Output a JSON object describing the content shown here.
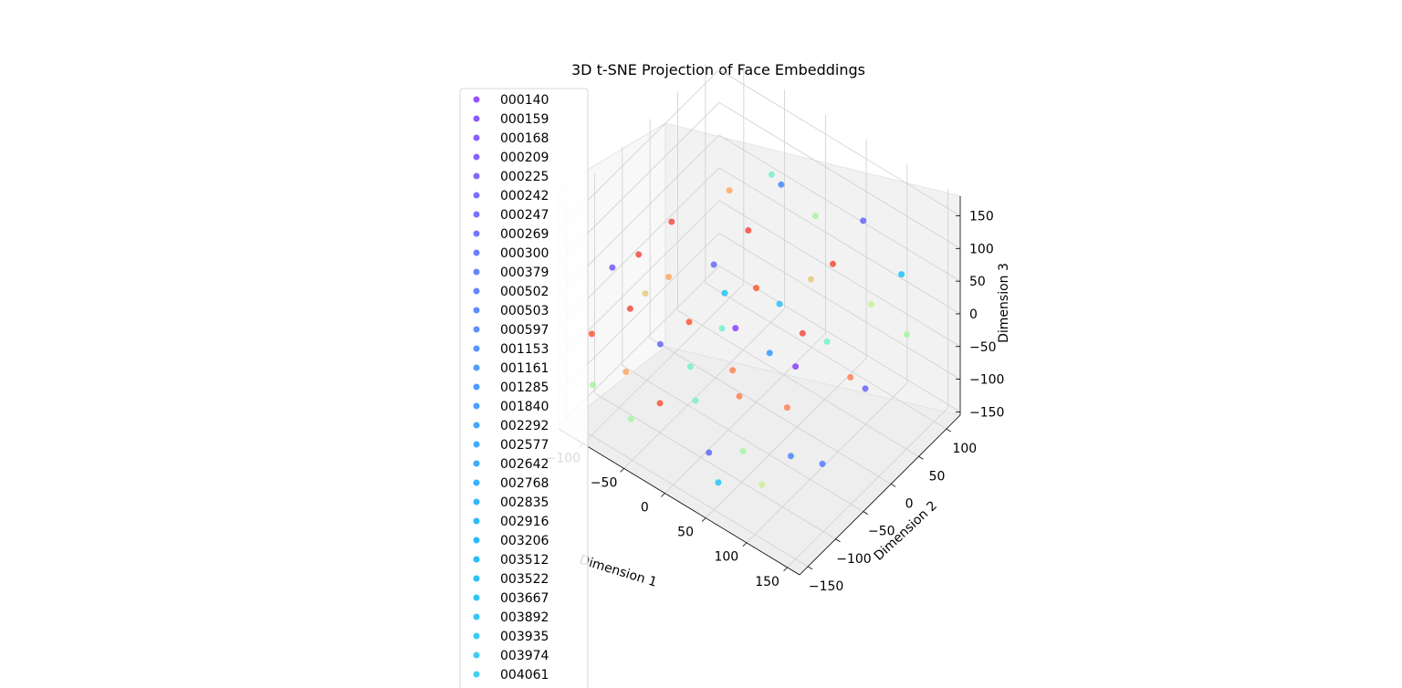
{
  "chart_data": {
    "type": "scatter",
    "projection": "3d",
    "title": "3D t-SNE Projection of Face Embeddings",
    "xlabel": "Dimension 1",
    "ylabel": "Dimension 2",
    "zlabel": "Dimension 3",
    "x_ticks": [
      "−100",
      "−50",
      "0",
      "50",
      "100",
      "150"
    ],
    "y_ticks": [
      "−150",
      "−100",
      "−50",
      "0",
      "50",
      "100"
    ],
    "z_ticks": [
      "−150",
      "−100",
      "−50",
      "0",
      "50",
      "100",
      "150"
    ],
    "xlim": [
      -130,
      165
    ],
    "ylim": [
      -165,
      125
    ],
    "zlim": [
      -155,
      180
    ],
    "grid": true,
    "legend_placement": "upper-left",
    "colormap": "rainbow",
    "legend": [
      {
        "label": "000140",
        "color": "#8036fb"
      },
      {
        "label": "000159",
        "color": "#7a3dfb"
      },
      {
        "label": "000168",
        "color": "#7543fc"
      },
      {
        "label": "000209",
        "color": "#704afc"
      },
      {
        "label": "000225",
        "color": "#6a50fc"
      },
      {
        "label": "000242",
        "color": "#6556fd"
      },
      {
        "label": "000247",
        "color": "#5f5cfd"
      },
      {
        "label": "000269",
        "color": "#5a62fd"
      },
      {
        "label": "000300",
        "color": "#5568fd"
      },
      {
        "label": "000379",
        "color": "#4f6dfe"
      },
      {
        "label": "000502",
        "color": "#4a73fe"
      },
      {
        "label": "000503",
        "color": "#4478fe"
      },
      {
        "label": "000597",
        "color": "#3f7efe"
      },
      {
        "label": "001153",
        "color": "#3a83ff"
      },
      {
        "label": "001161",
        "color": "#3488ff"
      },
      {
        "label": "001285",
        "color": "#2f8dff"
      },
      {
        "label": "001840",
        "color": "#2a91ff"
      },
      {
        "label": "002292",
        "color": "#2496ff"
      },
      {
        "label": "002577",
        "color": "#1f9bfe"
      },
      {
        "label": "002642",
        "color": "#1a9ffe"
      },
      {
        "label": "002768",
        "color": "#14a3fe"
      },
      {
        "label": "002835",
        "color": "#0fa7fd"
      },
      {
        "label": "002916",
        "color": "#0aabfd"
      },
      {
        "label": "003206",
        "color": "#04affc"
      },
      {
        "label": "003512",
        "color": "#01b2fb"
      },
      {
        "label": "003522",
        "color": "#06b6fa"
      },
      {
        "label": "003667",
        "color": "#0cbaf9"
      },
      {
        "label": "003892",
        "color": "#12bdf8"
      },
      {
        "label": "003935",
        "color": "#18c1f6"
      },
      {
        "label": "003974",
        "color": "#1ec4f4"
      },
      {
        "label": "004061",
        "color": "#24c7f2"
      }
    ],
    "points": [
      {
        "x": -110,
        "y": -50,
        "z": 30,
        "color": "#f44236"
      },
      {
        "x": -115,
        "y": -90,
        "z": 40,
        "color": "#6a50fc"
      },
      {
        "x": -120,
        "y": -120,
        "z": -40,
        "color": "#ff4e2a"
      },
      {
        "x": -100,
        "y": -80,
        "z": -20,
        "color": "#f44236"
      },
      {
        "x": -95,
        "y": -60,
        "z": -10,
        "color": "#e6c874"
      },
      {
        "x": -90,
        "y": -20,
        "z": 70,
        "color": "#f44236"
      },
      {
        "x": -80,
        "y": -40,
        "z": 10,
        "color": "#ffa35a"
      },
      {
        "x": -70,
        "y": -70,
        "z": -60,
        "color": "#5f5cfd"
      },
      {
        "x": -60,
        "y": 40,
        "z": 90,
        "color": "#ffa35a"
      },
      {
        "x": -55,
        "y": -40,
        "z": -40,
        "color": "#ff4e2a"
      },
      {
        "x": -50,
        "y": -100,
        "z": -110,
        "color": "#ff4e2a"
      },
      {
        "x": -45,
        "y": -10,
        "z": 30,
        "color": "#5a62fd"
      },
      {
        "x": -40,
        "y": -60,
        "z": -80,
        "color": "#6ef0c7"
      },
      {
        "x": -30,
        "y": 30,
        "z": 60,
        "color": "#f44236"
      },
      {
        "x": -25,
        "y": -20,
        "z": 10,
        "color": "#18c1f6"
      },
      {
        "x": -20,
        "y": -80,
        "z": -100,
        "color": "#6ef0c7"
      },
      {
        "x": -10,
        "y": 60,
        "z": 120,
        "color": "#3a83ff"
      },
      {
        "x": -5,
        "y": -30,
        "z": -20,
        "color": "#8036fb"
      },
      {
        "x": 0,
        "y": 0,
        "z": 20,
        "color": "#ff4e2a"
      },
      {
        "x": 5,
        "y": -50,
        "z": -60,
        "color": "#ff7a48"
      },
      {
        "x": 10,
        "y": -100,
        "z": -140,
        "color": "#5a62fd"
      },
      {
        "x": 15,
        "y": 20,
        "z": -10,
        "color": "#18c1f6"
      },
      {
        "x": 20,
        "y": -60,
        "z": -80,
        "color": "#ff7a48"
      },
      {
        "x": 25,
        "y": 70,
        "z": 90,
        "color": "#a0f5a0"
      },
      {
        "x": 30,
        "y": -20,
        "z": -40,
        "color": "#2496ff"
      },
      {
        "x": 40,
        "y": 40,
        "z": 30,
        "color": "#e6c874"
      },
      {
        "x": 45,
        "y": -90,
        "z": -120,
        "color": "#a0f5a0"
      },
      {
        "x": 50,
        "y": 10,
        "z": -20,
        "color": "#f44236"
      },
      {
        "x": 60,
        "y": 50,
        "z": 60,
        "color": "#f44236"
      },
      {
        "x": 65,
        "y": -40,
        "z": -80,
        "color": "#ff7a48"
      },
      {
        "x": 70,
        "y": 90,
        "z": 100,
        "color": "#5f5cfd"
      },
      {
        "x": 80,
        "y": 10,
        "z": -10,
        "color": "#6ef0c7"
      },
      {
        "x": 90,
        "y": -70,
        "z": -110,
        "color": "#3f7efe"
      },
      {
        "x": 100,
        "y": 60,
        "z": 20,
        "color": "#c8f08c"
      },
      {
        "x": 110,
        "y": 100,
        "z": 40,
        "color": "#12bdf8"
      },
      {
        "x": 120,
        "y": 20,
        "z": -60,
        "color": "#5f5cfd"
      },
      {
        "x": 130,
        "y": 80,
        "z": -20,
        "color": "#a0f5a0"
      },
      {
        "x": -105,
        "y": -140,
        "z": -90,
        "color": "#a0f5a0"
      },
      {
        "x": -85,
        "y": -110,
        "z": -80,
        "color": "#ffa35a"
      },
      {
        "x": -65,
        "y": -130,
        "z": -120,
        "color": "#a0f5a0"
      },
      {
        "x": -35,
        "y": -10,
        "z": -60,
        "color": "#6ef0c7"
      },
      {
        "x": -15,
        "y": 50,
        "z": 140,
        "color": "#6ef0c7"
      },
      {
        "x": 35,
        "y": -120,
        "z": -150,
        "color": "#18c1f6"
      },
      {
        "x": 55,
        "y": -10,
        "z": -50,
        "color": "#8036fb"
      },
      {
        "x": 75,
        "y": -100,
        "z": -140,
        "color": "#c8f08c"
      },
      {
        "x": 95,
        "y": 30,
        "z": -70,
        "color": "#ff7a48"
      },
      {
        "x": 115,
        "y": -50,
        "z": -120,
        "color": "#4a73fe"
      }
    ]
  }
}
